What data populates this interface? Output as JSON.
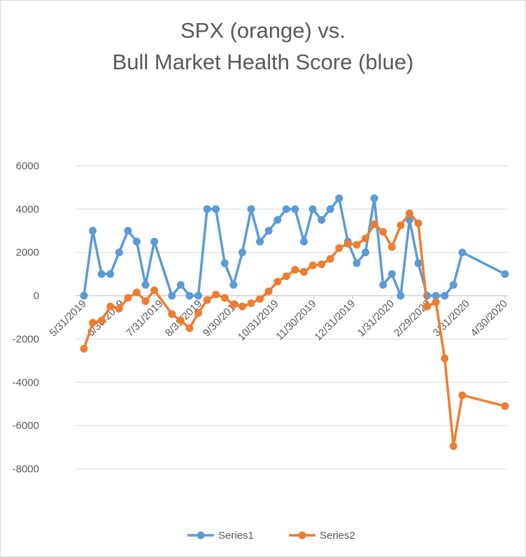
{
  "chart_data": {
    "type": "line",
    "title_lines": [
      "SPX (orange) vs.",
      "Bull Market Health Score (blue)"
    ],
    "xlabel": "",
    "ylabel": "",
    "ylim": [
      -8000,
      6000
    ],
    "y_ticks": [
      6000,
      4000,
      2000,
      0,
      -2000,
      -4000,
      -6000,
      -8000
    ],
    "x_tick_labels": [
      "5/31/2019",
      "6/30/2019",
      "7/31/2019",
      "8/31/2019",
      "9/30/2019",
      "10/31/2019",
      "11/30/2019",
      "12/31/2019",
      "1/31/2020",
      "2/29/2020",
      "3/31/2020",
      "4/30/2020"
    ],
    "grid": true,
    "legend": "bottom",
    "x": [
      "2019-05-31",
      "2019-06-07",
      "2019-06-14",
      "2019-06-21",
      "2019-06-28",
      "2019-07-05",
      "2019-07-12",
      "2019-07-19",
      "2019-07-26",
      "2019-08-09",
      "2019-08-16",
      "2019-08-23",
      "2019-08-30",
      "2019-09-06",
      "2019-09-13",
      "2019-09-20",
      "2019-09-27",
      "2019-10-04",
      "2019-10-11",
      "2019-10-18",
      "2019-10-25",
      "2019-11-01",
      "2019-11-08",
      "2019-11-15",
      "2019-11-22",
      "2019-11-29",
      "2019-12-06",
      "2019-12-13",
      "2019-12-20",
      "2019-12-27",
      "2020-01-03",
      "2020-01-10",
      "2020-01-17",
      "2020-01-24",
      "2020-01-31",
      "2020-02-07",
      "2020-02-14",
      "2020-02-21",
      "2020-02-28",
      "2020-03-06",
      "2020-03-13",
      "2020-03-20",
      "2020-03-27",
      "2020-04-30"
    ],
    "series": [
      {
        "name": "Series1",
        "color": "#5B9BD5",
        "values": [
          0,
          3000,
          1000,
          1000,
          2000,
          3000,
          2500,
          500,
          2500,
          0,
          500,
          0,
          0,
          4000,
          4000,
          1500,
          500,
          2000,
          4000,
          2500,
          3000,
          3500,
          4000,
          4000,
          2500,
          4000,
          3500,
          4000,
          4500,
          2500,
          1500,
          2000,
          4500,
          500,
          1000,
          0,
          3500,
          1500,
          0,
          0,
          0,
          500,
          2000,
          1000
        ]
      },
      {
        "name": "Series2",
        "color": "#ED7D31",
        "values": [
          -2450,
          -1250,
          -1150,
          -500,
          -600,
          -100,
          150,
          -250,
          250,
          -850,
          -1150,
          -1500,
          -800,
          -200,
          50,
          -100,
          -400,
          -500,
          -350,
          -150,
          200,
          650,
          900,
          1200,
          1100,
          1400,
          1450,
          1700,
          2200,
          2400,
          2350,
          2650,
          3300,
          2950,
          2250,
          3250,
          3800,
          3350,
          -500,
          -300,
          -2900,
          -6950,
          -4600,
          -5100
        ]
      }
    ]
  }
}
